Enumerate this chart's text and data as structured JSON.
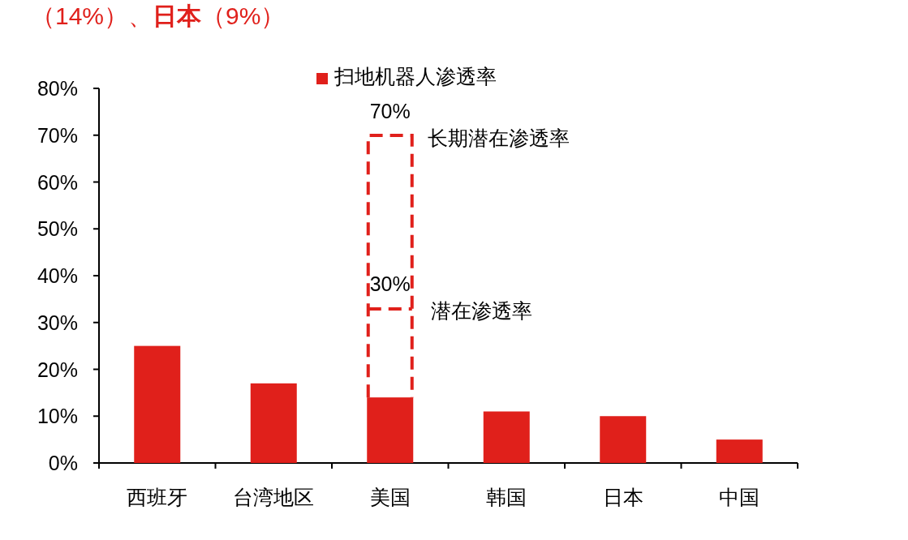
{
  "chart_data": {
    "type": "bar",
    "title": "（14%）、**日本**（9%）",
    "categories": [
      "西班牙",
      "台湾地区",
      "美国",
      "韩国",
      "日本",
      "中国"
    ],
    "series": [
      {
        "name": "扫地机器人渗透率",
        "color": "#e0201b",
        "values": [
          25,
          17,
          14,
          11,
          10,
          5
        ]
      }
    ],
    "ylim": [
      0,
      80
    ],
    "yticks": [
      {
        "value": 0,
        "label": "0%"
      },
      {
        "value": 10,
        "label": "10%"
      },
      {
        "value": 20,
        "label": "20%"
      },
      {
        "value": 30,
        "label": "30%"
      },
      {
        "value": 40,
        "label": "40%"
      },
      {
        "value": 50,
        "label": "50%"
      },
      {
        "value": 60,
        "label": "60%"
      },
      {
        "value": 70,
        "label": "70%"
      },
      {
        "value": 80,
        "label": "80%"
      }
    ],
    "legend": "top",
    "annotations": [
      "70%",
      "长期潜在渗透率",
      "30%",
      "潜在渗透率"
    ]
  }
}
